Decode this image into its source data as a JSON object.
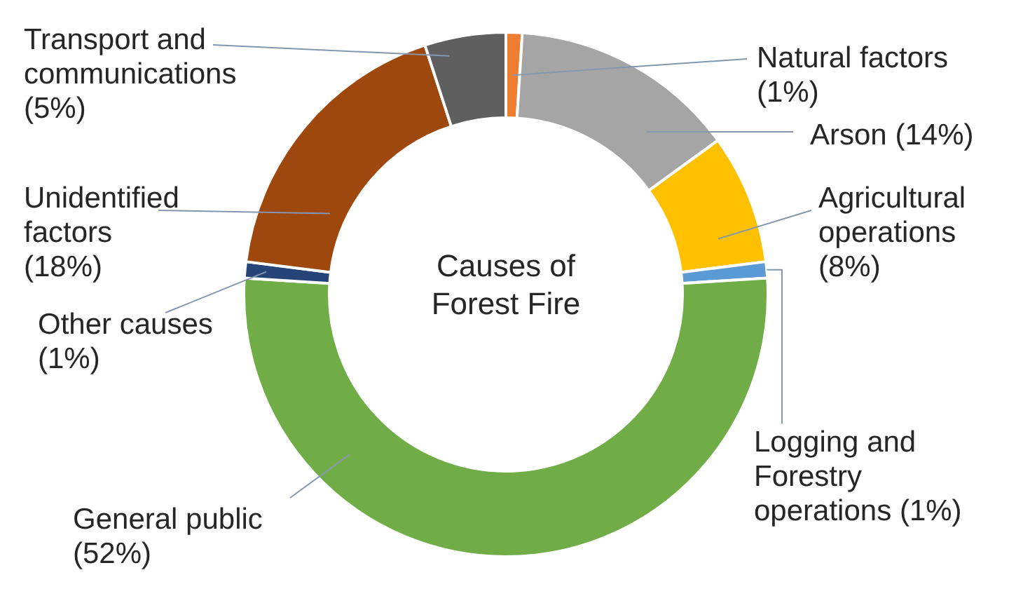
{
  "chart_data": {
    "type": "donut",
    "title": "Causes of Forest Fire",
    "categories": [
      "Natural factors",
      "Arson",
      "Agricultural operations",
      "Logging and Forestry operations",
      "General public",
      "Other causes",
      "Unidentified factors",
      "Transport and communications"
    ],
    "values": [
      1,
      14,
      8,
      1,
      52,
      1,
      18,
      5
    ],
    "colors": [
      "#ed7d31",
      "#a5a5a5",
      "#ffc000",
      "#5b9bd5",
      "#70ad47",
      "#264478",
      "#9e480e",
      "#5f5f5f"
    ],
    "value_labels": [
      "(1%)",
      "(14%)",
      "(8%)",
      "(1%)",
      "(52%)",
      "(1%)",
      "(18%)",
      "(5%)"
    ]
  }
}
